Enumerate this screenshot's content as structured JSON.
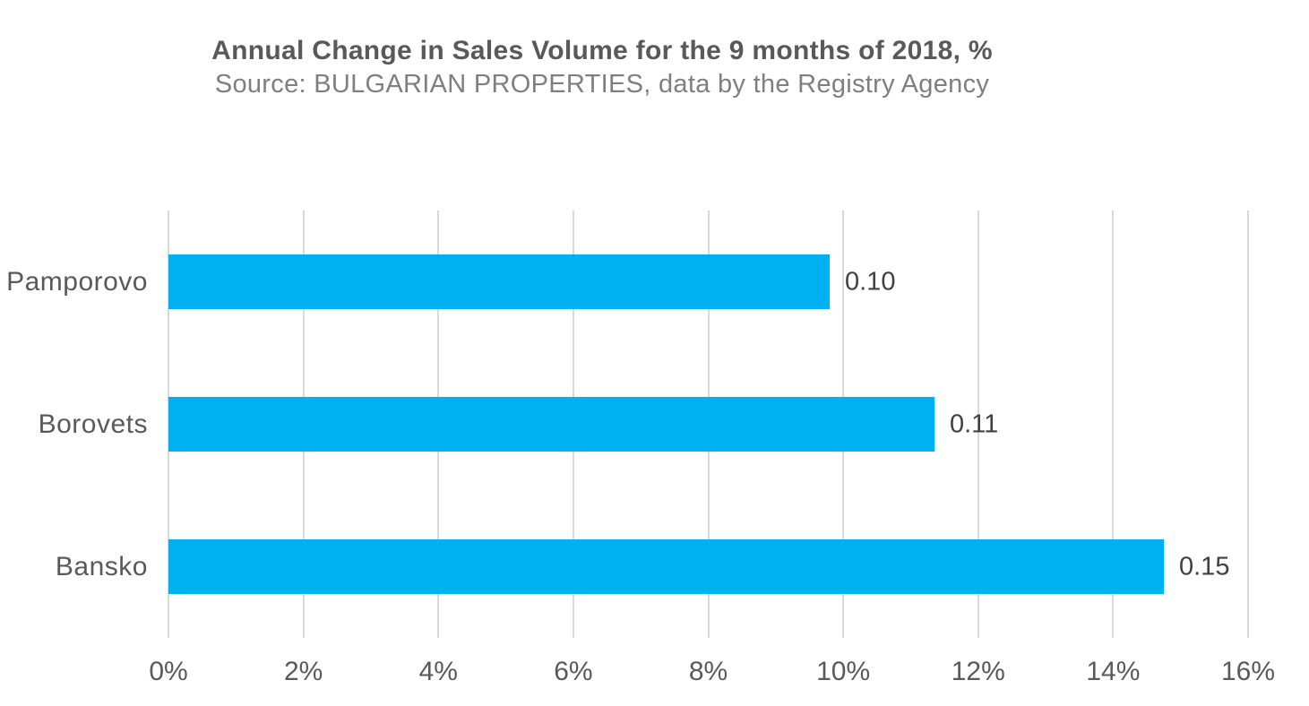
{
  "header": {
    "title": "Annual Change in Sales Volume for the 9 months of 2018, %",
    "subtitle": "Source: BULGARIAN PROPERTIES, data by the Registry Agency"
  },
  "chart_data": {
    "type": "bar",
    "orientation": "horizontal",
    "title": "Annual Change in Sales Volume for the 9 months of 2018, %",
    "subtitle": "Source: BULGARIAN PROPERTIES, data by the Registry Agency",
    "categories": [
      "Pamporovo",
      "Borovets",
      "Bansko"
    ],
    "values_pct": [
      9.8,
      11.35,
      14.75
    ],
    "data_labels": [
      "0.10",
      "0.11",
      "0.15"
    ],
    "xlabel": "",
    "ylabel": "",
    "x_axis": {
      "min": 0,
      "max": 16,
      "step": 2,
      "tick_labels": [
        "0%",
        "2%",
        "4%",
        "6%",
        "8%",
        "10%",
        "12%",
        "14%",
        "16%"
      ]
    },
    "grid": "vertical-only",
    "legend": "none",
    "colors": {
      "bar": "#00b0f0",
      "gridline": "#d9d9d9",
      "title_text": "#595959",
      "subtitle_text": "#7f7f7f",
      "category_text": "#595959",
      "value_text": "#404040",
      "axis_text": "#595959"
    }
  }
}
